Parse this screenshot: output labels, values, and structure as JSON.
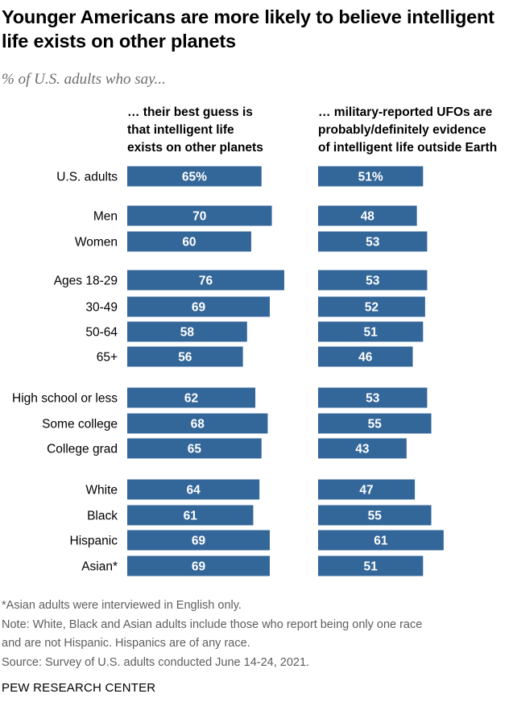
{
  "chart_data": {
    "type": "bar",
    "title": "Younger Americans are more likely to believe intelligent life exists on other planets",
    "subtitle": "% of U.S. adults who say...",
    "categories": [
      "U.S. adults",
      "Men",
      "Women",
      "Ages 18-29",
      "30-49",
      "50-64",
      "65+",
      "High school or less",
      "Some college",
      "College grad",
      "White",
      "Black",
      "Hispanic",
      "Asian*"
    ],
    "series": [
      {
        "name": "… their best guess is\nthat intelligent life\nexists on other planets",
        "values": [
          65,
          70,
          60,
          76,
          69,
          58,
          56,
          62,
          68,
          65,
          64,
          61,
          69,
          69
        ],
        "labels": [
          "65%",
          "70",
          "60",
          "76",
          "69",
          "58",
          "56",
          "62",
          "68",
          "65",
          "64",
          "61",
          "69",
          "69"
        ]
      },
      {
        "name": "… military-reported UFOs are\nprobably/definitely evidence\nof intelligent life outside Earth",
        "values": [
          51,
          48,
          53,
          53,
          52,
          51,
          46,
          53,
          55,
          43,
          47,
          55,
          61,
          51
        ],
        "labels": [
          "51%",
          "48",
          "53",
          "53",
          "52",
          "51",
          "46",
          "53",
          "55",
          "43",
          "47",
          "55",
          "61",
          "51"
        ]
      }
    ],
    "bar_color": "#336699",
    "label_color": "#ffffff",
    "xlabel": "",
    "ylabel": "",
    "ylim": [
      0,
      100
    ]
  },
  "notes": [
    "*Asian adults were interviewed in English only.",
    "Note: White, Black and Asian adults include those who report being only one race",
    "and are not Hispanic. Hispanics are of any race.",
    "Source: Survey of U.S. adults conducted June 14-24, 2021."
  ],
  "footer": "PEW RESEARCH CENTER"
}
